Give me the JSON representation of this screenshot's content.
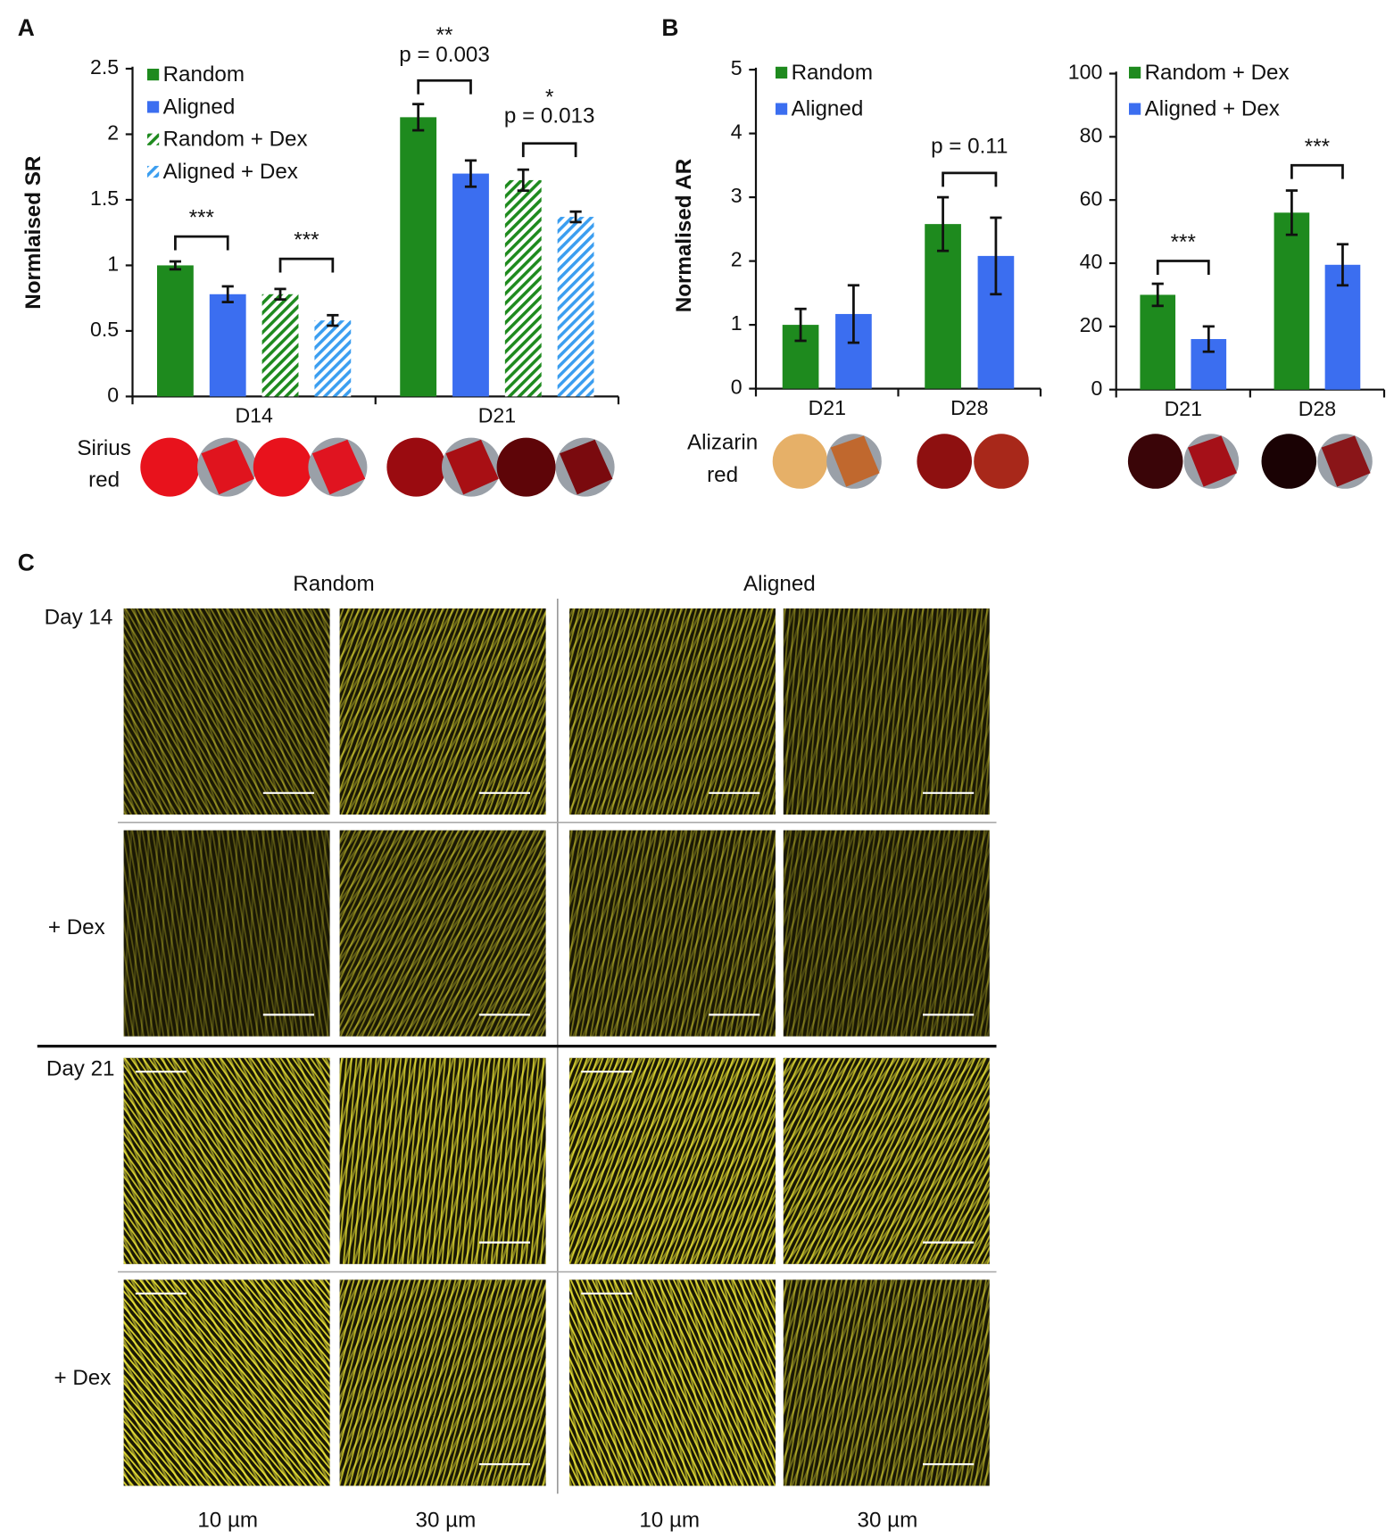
{
  "panel_labels": [
    "A",
    "B",
    "C"
  ],
  "chart_data": [
    {
      "type": "bar",
      "ylabel": "Normlaised SR",
      "categories": [
        "D14",
        "D21"
      ],
      "series": [
        {
          "name": "Random",
          "color": "#1e8a1e",
          "fill": "solid",
          "values": [
            1.0,
            2.13
          ],
          "errors": [
            0.03,
            0.1
          ]
        },
        {
          "name": "Aligned",
          "color": "#3b6ef0",
          "fill": "solid",
          "values": [
            0.78,
            1.7
          ],
          "errors": [
            0.06,
            0.1
          ]
        },
        {
          "name": "Random + Dex",
          "color": "#1e8a1e",
          "fill": "hatch",
          "values": [
            0.78,
            1.65
          ],
          "errors": [
            0.04,
            0.08
          ]
        },
        {
          "name": "Aligned + Dex",
          "color": "#3b9ef0",
          "fill": "hatch",
          "values": [
            0.58,
            1.37
          ],
          "errors": [
            0.04,
            0.04
          ]
        }
      ],
      "ylim": [
        0,
        2.5
      ],
      "yticks": [
        0,
        0.5,
        1,
        1.5,
        2,
        2.5
      ],
      "legend": "upper left",
      "annotations": [
        {
          "text": "***"
        },
        {
          "text": "***"
        },
        {
          "text": "**"
        },
        {
          "text": "p = 0.003"
        },
        {
          "text": "*"
        },
        {
          "text": "p = 0.013"
        }
      ],
      "stain_label": [
        "Sirius",
        "red"
      ]
    },
    {
      "type": "bar",
      "ylabel": "Normalised AR",
      "categories": [
        "D21",
        "D28"
      ],
      "series": [
        {
          "name": "Random",
          "color": "#1e8a1e",
          "fill": "solid",
          "values": [
            1.0,
            2.58
          ],
          "errors": [
            0.25,
            0.42
          ]
        },
        {
          "name": "Aligned",
          "color": "#3b6ef0",
          "fill": "solid",
          "values": [
            1.17,
            2.08
          ],
          "errors": [
            0.45,
            0.6
          ]
        }
      ],
      "ylim": [
        0,
        5
      ],
      "yticks": [
        0,
        1,
        2,
        3,
        4,
        5
      ],
      "legend": "upper left",
      "annotations": [
        {
          "text": "p = 0.11"
        }
      ],
      "stain_label": [
        "Alizarin",
        "red"
      ]
    },
    {
      "type": "bar",
      "categories": [
        "D21",
        "D28"
      ],
      "series": [
        {
          "name": "Random + Dex",
          "color": "#1e8a1e",
          "fill": "solid",
          "values": [
            30,
            56
          ],
          "errors": [
            3.5,
            7
          ]
        },
        {
          "name": "Aligned + Dex",
          "color": "#3b6ef0",
          "fill": "solid",
          "values": [
            16,
            39.5
          ],
          "errors": [
            4,
            6.5
          ]
        }
      ],
      "ylim": [
        0,
        100
      ],
      "yticks": [
        0,
        20,
        40,
        60,
        80,
        100
      ],
      "legend": "upper left",
      "annotations": [
        {
          "text": "***"
        },
        {
          "text": "***"
        }
      ]
    }
  ],
  "panel_c": {
    "columns": [
      "Random",
      "Aligned"
    ],
    "rows": [
      "Day 14",
      "+ Dex",
      "Day 21",
      "+ Dex"
    ],
    "magnifications": [
      "10 µm",
      "30 µm",
      "10 µm",
      "30 µm"
    ]
  }
}
